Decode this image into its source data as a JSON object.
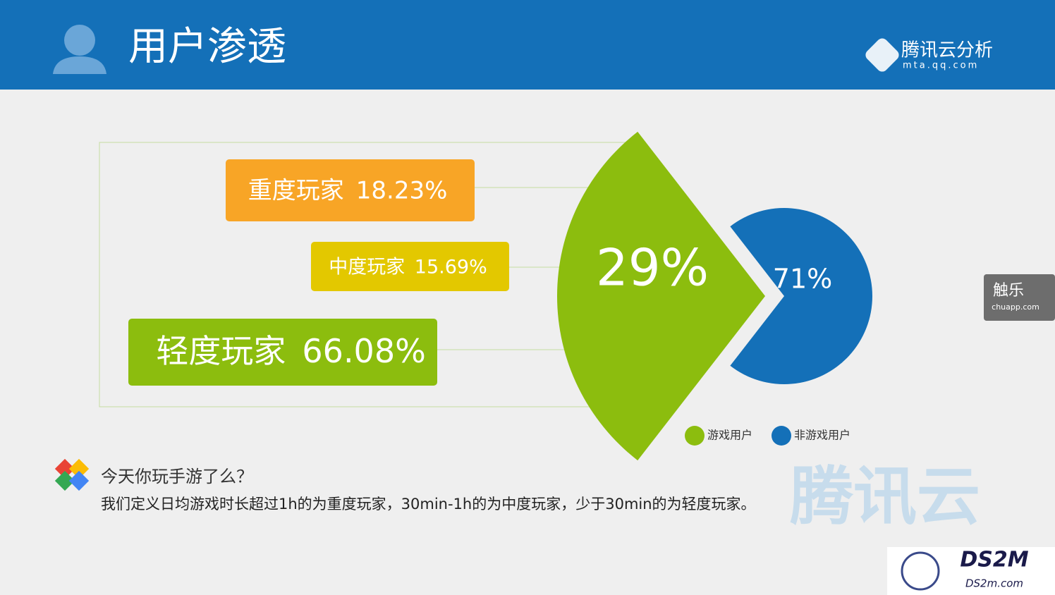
{
  "header": {
    "title": "用户渗透",
    "brand": "腾讯云分析",
    "brand_url": "mta.qq.com"
  },
  "chart_data": {
    "type": "pie",
    "categories": [
      "游戏用户",
      "非游戏用户"
    ],
    "values": [
      29,
      71
    ],
    "value_labels": [
      "29%",
      "71%"
    ],
    "colors": [
      "#8cbd0e",
      "#1470b8"
    ]
  },
  "breakdown": [
    {
      "name": "重度玩家",
      "value": "18.23%",
      "color": "#f8a526"
    },
    {
      "name": "中度玩家",
      "value": "15.69%",
      "color": "#e3c800"
    },
    {
      "name": "轻度玩家",
      "value": "66.08%",
      "color": "#8cbd0e"
    }
  ],
  "note": {
    "question": "今天你玩手游了么？",
    "text": "我们定义日均游戏时长超过1h的为重度玩家，30min-1h的为中度玩家，少于30min的为轻度玩家。"
  },
  "badge": {
    "name": "触乐",
    "url": "chuapp.com"
  },
  "watermarks": {
    "cloud": "腾讯云",
    "site": "DS2M",
    "site_url": "DS2m.com"
  }
}
